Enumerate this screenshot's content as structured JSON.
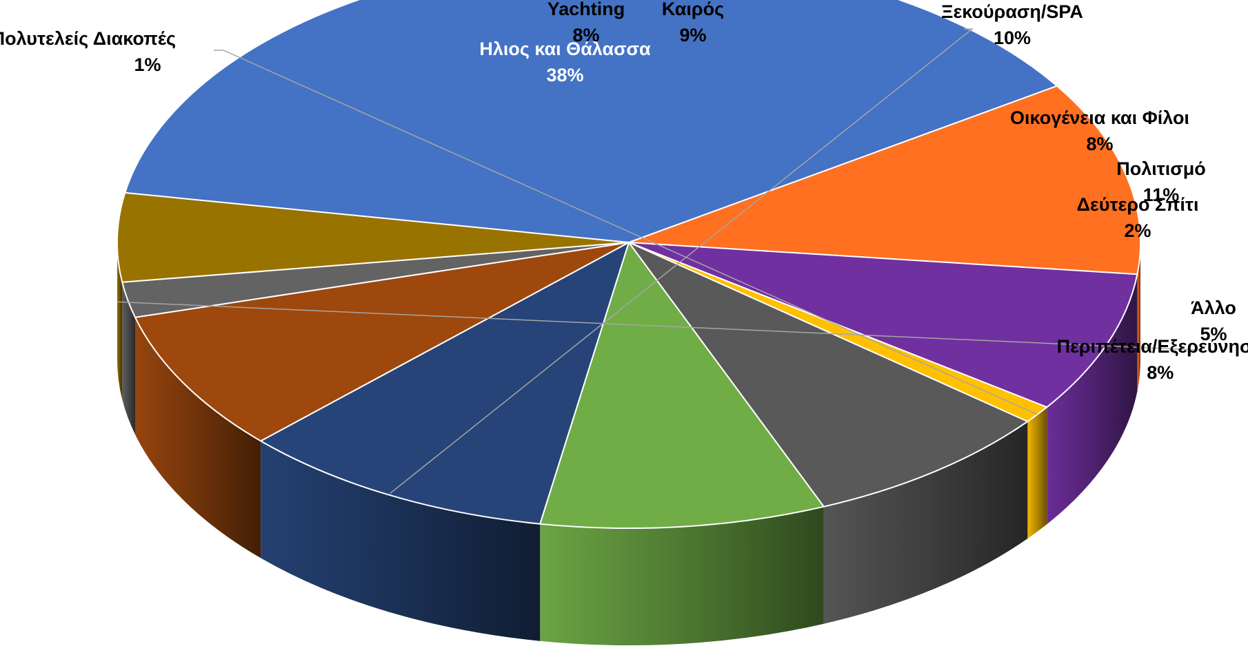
{
  "chart_data": {
    "type": "pie",
    "style": "3d",
    "categories": [
      "Ηλιος και Θάλασσα",
      "Πολιτισμό",
      "Περιπέτεια/Εξερεύνηση",
      "Πολυτελείς Διακοπές",
      "Yachting",
      "Καιρός",
      "Ξεκούραση/SPA",
      "Οικογένεια και Φίλοι",
      "Δεύτερο Σπίτι",
      "Άλλο"
    ],
    "values": [
      38,
      11,
      8,
      1,
      8,
      9,
      10,
      8,
      2,
      5
    ],
    "value_labels": [
      "38%",
      "11%",
      "8%",
      "1%",
      "8%",
      "9%",
      "10%",
      "8%",
      "2%",
      "5%"
    ],
    "colors": [
      "#4472C4",
      "#FF7020",
      "#7030A0",
      "#FFC000",
      "#595959",
      "#70AD47",
      "#264478",
      "#9E480E",
      "#636363",
      "#997300"
    ],
    "title": "",
    "legend": "none"
  }
}
